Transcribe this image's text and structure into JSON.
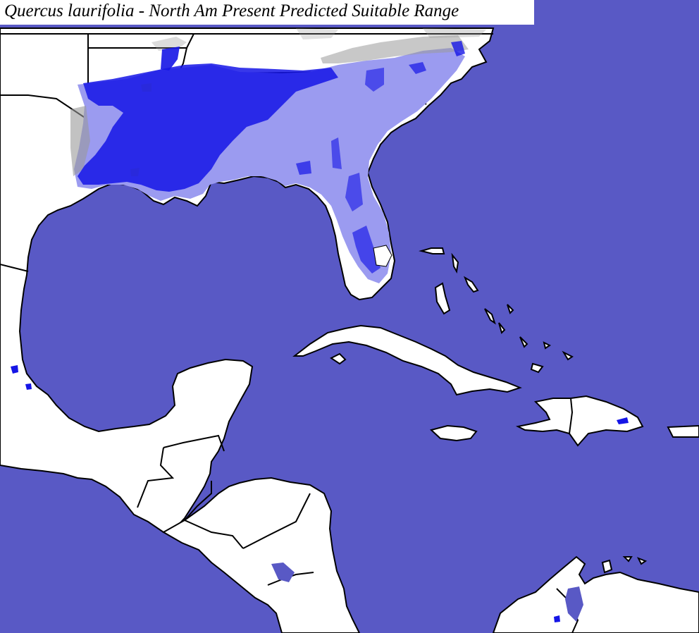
{
  "map": {
    "title": "Quercus laurifolia - North Am Present Predicted Suitable Range",
    "colors": {
      "ocean": "#5959c5",
      "land": "#ffffff",
      "suitable_range": "#9b9bf0",
      "occurrence_cells": "#1515e6",
      "borders": "#000000",
      "elevation_shading": "#9a9a9a"
    }
  }
}
